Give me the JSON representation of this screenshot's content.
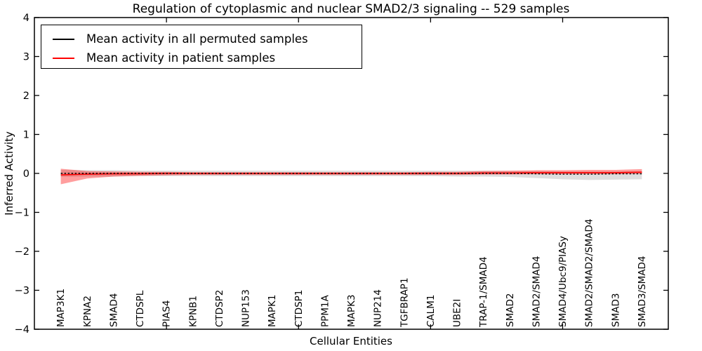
{
  "figure": {
    "title": "Regulation of cytoplasmic and nuclear SMAD2/3 signaling -- 529 samples",
    "xlabel": "Cellular Entities",
    "ylabel": "Inferred Activity"
  },
  "legend": {
    "position": "upper left",
    "entries": [
      {
        "label": "Mean activity in all permuted samples",
        "color": "#000000",
        "style": "dashed"
      },
      {
        "label": "Mean activity in patient samples",
        "color": "#ff0000",
        "style": "solid"
      }
    ]
  },
  "chart_data": {
    "type": "line",
    "title": "Regulation of cytoplasmic and nuclear SMAD2/3 signaling -- 529 samples",
    "xlabel": "Cellular Entities",
    "ylabel": "Inferred Activity",
    "xlim": [
      0,
      24
    ],
    "ylim": [
      -4,
      4
    ],
    "grid": false,
    "legend_position": "upper left",
    "y_tick_values": [
      4,
      3,
      2,
      1,
      0,
      -1,
      -2,
      -3,
      -4
    ],
    "y_tick_labels": [
      "4",
      "3",
      "2",
      "1",
      "0",
      "−1",
      "−2",
      "−3",
      "−4"
    ],
    "x_tick_values": [
      5,
      10,
      15,
      20
    ],
    "categories": [
      "MAP3K1",
      "KPNA2",
      "SMAD4",
      "CTDSPL",
      "PIAS4",
      "KPNB1",
      "CTDSP2",
      "NUP153",
      "MAPK1",
      "CTDSP1",
      "PPM1A",
      "MAPK3",
      "NUP214",
      "TGFBRAP1",
      "CALM1",
      "UBE2I",
      "TRAP-1/SMAD4",
      "SMAD2",
      "SMAD2/SMAD4",
      "SMAD4/Ubc9/PIASy",
      "SMAD2/SMAD2/SMAD4",
      "SMAD3",
      "SMAD3/SMAD4"
    ],
    "x": [
      1,
      2,
      3,
      4,
      5,
      6,
      7,
      8,
      9,
      10,
      11,
      12,
      13,
      14,
      15,
      16,
      17,
      18,
      19,
      20,
      21,
      22,
      23
    ],
    "series": [
      {
        "name": "Mean activity in all permuted samples",
        "color": "#000000",
        "style": "dashed",
        "values": [
          0,
          0,
          0,
          0,
          0,
          0,
          0,
          0,
          0,
          0,
          0,
          0,
          0,
          0,
          0,
          0,
          0,
          0,
          -0.01,
          -0.02,
          -0.02,
          -0.01,
          -0.01
        ]
      },
      {
        "name": "Mean activity in patient samples",
        "color": "#ff0000",
        "style": "solid",
        "values": [
          -0.04,
          -0.02,
          -0.01,
          -0.01,
          0,
          0,
          0,
          0,
          0,
          0,
          0,
          0,
          0,
          0,
          0,
          0,
          0.01,
          0.01,
          0.02,
          0.02,
          0.02,
          0.02,
          0.03
        ]
      }
    ],
    "bands": [
      {
        "name": "permuted-samples-std-band",
        "color": "#000000",
        "opacity": 0.13,
        "upper": [
          0.09,
          0.08,
          0.08,
          0.07,
          0.07,
          0.07,
          0.07,
          0.07,
          0.07,
          0.07,
          0.07,
          0.07,
          0.07,
          0.07,
          0.07,
          0.07,
          0.07,
          0.06,
          0.06,
          0.05,
          0.05,
          0.05,
          0.06
        ],
        "lower": [
          -0.09,
          -0.08,
          -0.08,
          -0.07,
          -0.07,
          -0.07,
          -0.07,
          -0.07,
          -0.07,
          -0.07,
          -0.07,
          -0.07,
          -0.07,
          -0.07,
          -0.07,
          -0.08,
          -0.08,
          -0.09,
          -0.12,
          -0.15,
          -0.17,
          -0.16,
          -0.15
        ]
      },
      {
        "name": "patient-samples-std-band",
        "color": "#ff0000",
        "opacity": 0.38,
        "upper": [
          0.12,
          0.06,
          0.05,
          0.04,
          0.04,
          0.03,
          0.03,
          0.03,
          0.03,
          0.03,
          0.03,
          0.03,
          0.03,
          0.03,
          0.04,
          0.04,
          0.06,
          0.07,
          0.08,
          0.08,
          0.09,
          0.09,
          0.11
        ],
        "lower": [
          -0.28,
          -0.13,
          -0.08,
          -0.06,
          -0.05,
          -0.04,
          -0.04,
          -0.04,
          -0.04,
          -0.04,
          -0.04,
          -0.04,
          -0.04,
          -0.04,
          -0.04,
          -0.04,
          -0.03,
          -0.03,
          -0.02,
          -0.02,
          -0.02,
          -0.02,
          -0.01
        ]
      }
    ]
  }
}
